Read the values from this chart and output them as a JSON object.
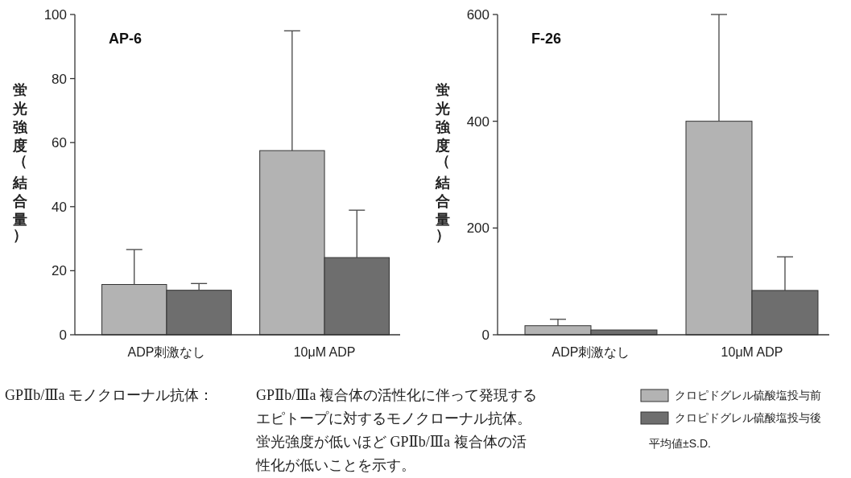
{
  "chart_data": [
    {
      "type": "bar",
      "title": "AP-6",
      "ylabel": "蛍光強度（結合量）",
      "categories": [
        "ADP刺激なし",
        "10μM ADP"
      ],
      "series": [
        {
          "color": "#b3b3b3",
          "values": [
            15.7,
            57.5
          ],
          "errors": [
            [
              15.7,
              26.6
            ],
            [
              57.5,
              94.9
            ]
          ]
        },
        {
          "color": "#6e6e6e",
          "values": [
            13.9,
            24.1
          ],
          "errors": [
            [
              13.9,
              16
            ],
            [
              24.1,
              38.9
            ]
          ]
        }
      ],
      "ylim": [
        0,
        100
      ],
      "yticks": [
        0,
        20,
        40,
        60,
        80,
        100
      ],
      "annotations": [
        "GPⅡb/Ⅲa モノクローナル抗体：",
        "GPⅡb/Ⅲa 複合体の活性化に伴って発現するエピトープに対するモノクローナル抗体。蛍光強度が低いほど GPⅡb/Ⅲa 複合体の活性化が低いことを示す。"
      ]
    },
    {
      "type": "bar",
      "title": "F-26",
      "ylabel": "蛍光強度（結合量）",
      "categories": [
        "ADP刺激なし",
        "10μM ADP"
      ],
      "series": [
        {
          "name": "クロピドグレル硫酸塩投与前",
          "color": "#b3b3b3",
          "values": [
            17,
            400
          ],
          "errors": [
            [
              17,
              29
            ],
            [
              400,
              600
            ]
          ]
        },
        {
          "name": "クロピドグレル硫酸塩投与後",
          "color": "#6e6e6e",
          "values": [
            9,
            83
          ],
          "errors": [
            null,
            [
              83,
              146
            ]
          ]
        }
      ],
      "ylim": [
        0,
        600
      ],
      "yticks": [
        0,
        200,
        400,
        600
      ],
      "legend": "bottom right",
      "annotations": [
        "平均値±S.D."
      ]
    }
  ]
}
